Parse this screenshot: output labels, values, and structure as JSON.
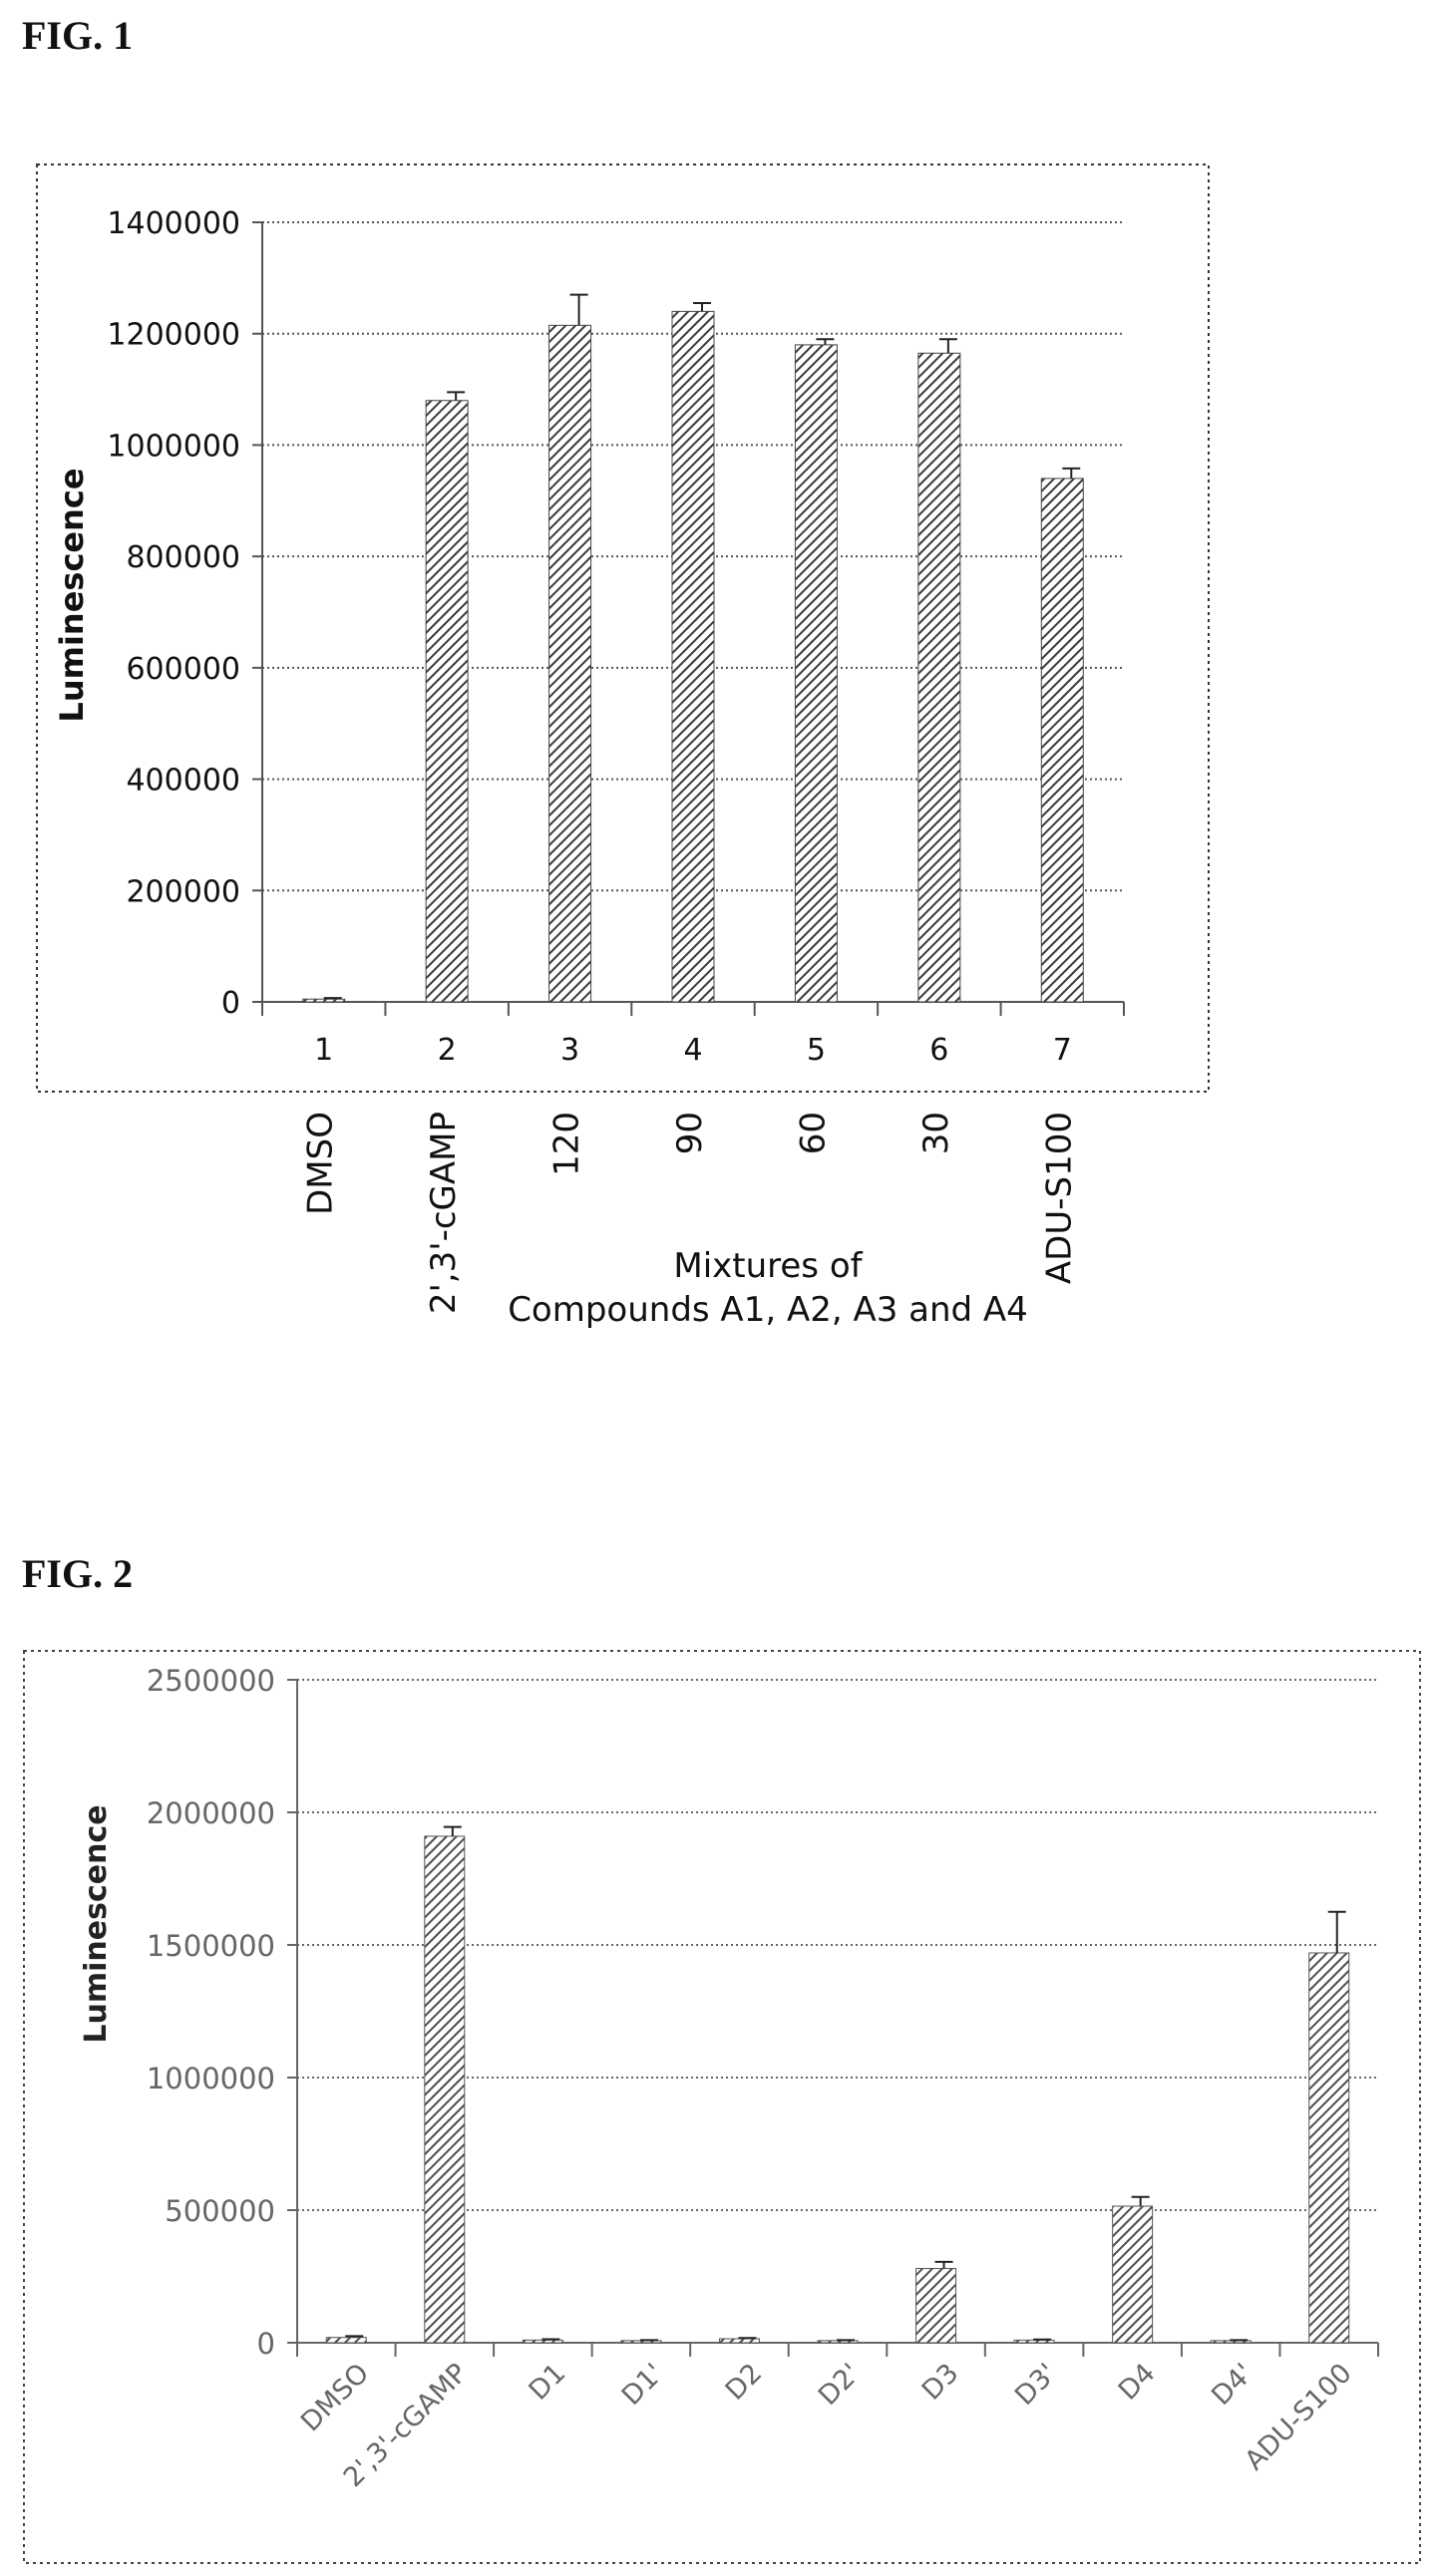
{
  "figures": {
    "fig1": {
      "label": "FIG. 1"
    },
    "fig2": {
      "label": "FIG. 2"
    }
  },
  "chart_data": [
    {
      "type": "bar",
      "title": "",
      "ylabel": "Luminescence",
      "xlabel": "",
      "categories": [
        "1",
        "2",
        "3",
        "4",
        "5",
        "6",
        "7"
      ],
      "sample_labels": [
        "DMSO",
        "2',3'-cGAMP",
        "120",
        "90",
        "60",
        "30",
        "ADU-S100"
      ],
      "group_annotation": [
        "Mixtures of",
        "Compounds A1, A2, A3 and A4"
      ],
      "values": [
        5000,
        1080000,
        1215000,
        1240000,
        1180000,
        1165000,
        940000
      ],
      "error": [
        2000,
        15000,
        55000,
        15000,
        10000,
        25000,
        18000
      ],
      "ylim": [
        0,
        1400000
      ],
      "yticks": [
        0,
        200000,
        400000,
        600000,
        800000,
        1000000,
        1200000,
        1400000
      ],
      "grid": "horizontal dotted",
      "legend": "none",
      "bar_pattern": "diagonal hatch",
      "colors": {
        "bar": "#444444",
        "grid": "#555555",
        "axis": "#555555"
      }
    },
    {
      "type": "bar",
      "title": "",
      "ylabel": "Luminescence",
      "xlabel": "",
      "categories": [
        "DMSO",
        "2',3'-cGAMP",
        "D1",
        "D1'",
        "D2",
        "D2'",
        "D3",
        "D3'",
        "D4",
        "D4'",
        "ADU-S100"
      ],
      "values": [
        20000,
        1910000,
        10000,
        8000,
        15000,
        8000,
        280000,
        10000,
        515000,
        8000,
        1470000
      ],
      "error": [
        5000,
        35000,
        3000,
        2000,
        3000,
        2000,
        25000,
        2000,
        35000,
        2000,
        155000
      ],
      "ylim": [
        0,
        2500000
      ],
      "yticks": [
        0,
        500000,
        1000000,
        1500000,
        2000000,
        2500000
      ],
      "grid": "horizontal dotted",
      "legend": "none",
      "bar_pattern": "diagonal hatch",
      "colors": {
        "bar": "#555555",
        "grid": "#666666",
        "axis": "#666666"
      }
    }
  ]
}
